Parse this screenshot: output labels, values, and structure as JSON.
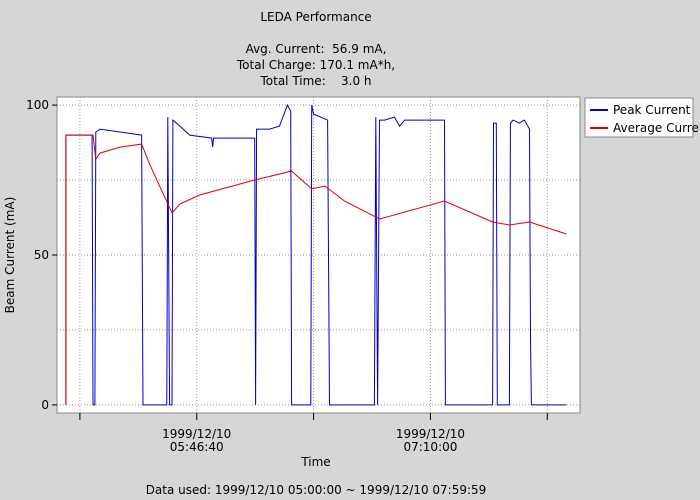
{
  "chart_data": {
    "type": "line",
    "title": "LEDA Performance",
    "subtitle": [
      "Avg. Current:  56.9 mA,",
      "Total Charge: 170.1 mA*h,",
      "Total Time:    3.0 h"
    ],
    "xlabel": "Time",
    "ylabel": "Beam Current (mA)",
    "footer": "Data used: 1999/12/10 05:00:00 ~ 1999/12/10 07:59:59",
    "xlim": [
      "1999/12/10 04:56:50",
      "1999/12/10 08:03:20"
    ],
    "xticks": [
      {
        "value": "1999/12/10 05:46:40",
        "label": [
          "1999/12/10",
          "05:46:40"
        ]
      },
      {
        "value": "1999/12/10 07:10:00",
        "label": [
          "1999/12/10",
          "07:10:00"
        ]
      }
    ],
    "x_minor_ticks": [
      "1999/12/10 05:05:00",
      "1999/12/10 06:28:20",
      "1999/12/10 07:51:40"
    ],
    "ylim": [
      -2.7,
      102.7
    ],
    "yticks": [
      0,
      50,
      100
    ],
    "y_minor_ticks": [
      25,
      75
    ],
    "grid": true,
    "legend": "right",
    "series": [
      {
        "name": "Peak Current",
        "color": "#0000cc",
        "x": [
          "1999/12/10 05:00:00",
          "1999/12/10 05:00:00",
          "1999/12/10 05:09:20",
          "1999/12/10 05:09:40",
          "1999/12/10 05:10:20",
          "1999/12/10 05:10:40",
          "1999/12/10 05:12:10",
          "1999/12/10 05:27:00",
          "1999/12/10 05:27:30",
          "1999/12/10 05:36:00",
          "1999/12/10 05:36:20",
          "1999/12/10 05:37:00",
          "1999/12/10 05:37:50",
          "1999/12/10 05:38:10",
          "1999/12/10 05:40:40",
          "1999/12/10 05:44:10",
          "1999/12/10 05:52:00",
          "1999/12/10 05:52:20",
          "1999/12/10 05:52:40",
          "1999/12/10 06:07:20",
          "1999/12/10 06:07:40",
          "1999/12/10 06:08:00",
          "1999/12/10 06:12:40",
          "1999/12/10 06:16:10",
          "1999/12/10 06:19:00",
          "1999/12/10 06:20:10",
          "1999/12/10 06:20:30",
          "1999/12/10 06:27:20",
          "1999/12/10 06:27:40",
          "1999/12/10 06:28:20",
          "1999/12/10 06:33:20",
          "1999/12/10 06:34:00",
          "1999/12/10 06:50:00",
          "1999/12/10 06:50:30",
          "1999/12/10 06:51:10",
          "1999/12/10 06:51:50",
          "1999/12/10 06:53:40",
          "1999/12/10 06:57:10",
          "1999/12/10 06:59:00",
          "1999/12/10 07:00:50",
          "1999/12/10 07:15:00",
          "1999/12/10 07:15:20",
          "1999/12/10 07:32:10",
          "1999/12/10 07:32:30",
          "1999/12/10 07:33:30",
          "1999/12/10 07:33:50",
          "1999/12/10 07:38:10",
          "1999/12/10 07:38:30",
          "1999/12/10 07:39:30",
          "1999/12/10 07:41:40",
          "1999/12/10 07:43:30",
          "1999/12/10 07:45:20",
          "1999/12/10 07:45:40",
          "1999/12/10 07:46:00",
          "1999/12/10 07:58:30"
        ],
        "values": [
          0,
          90,
          90,
          0,
          0,
          91,
          92,
          90,
          0,
          0,
          96,
          0,
          0,
          95,
          93,
          90,
          89,
          86,
          89,
          89,
          0,
          92,
          92,
          93,
          100,
          98,
          0,
          0,
          100,
          97,
          95,
          0,
          0,
          96,
          0,
          95,
          95,
          96,
          93,
          95,
          95,
          0,
          0,
          94,
          94,
          0,
          0,
          94,
          95,
          94,
          95,
          92,
          22,
          0,
          0
        ]
      },
      {
        "name": "Average Current",
        "color": "#dd0000",
        "x": [
          "1999/12/10 05:00:00",
          "1999/12/10 05:00:00",
          "1999/12/10 05:09:40",
          "1999/12/10 05:10:40",
          "1999/12/10 05:12:10",
          "1999/12/10 05:19:20",
          "1999/12/10 05:27:00",
          "1999/12/10 05:30:00",
          "1999/12/10 05:37:50",
          "1999/12/10 05:40:40",
          "1999/12/10 05:47:40",
          "1999/12/10 06:07:20",
          "1999/12/10 06:20:30",
          "1999/12/10 06:27:40",
          "1999/12/10 06:32:20",
          "1999/12/10 06:39:20",
          "1999/12/10 06:51:50",
          "1999/12/10 07:15:00",
          "1999/12/10 07:32:10",
          "1999/12/10 07:38:10",
          "1999/12/10 07:45:20",
          "1999/12/10 07:58:30"
        ],
        "values": [
          0,
          90,
          90,
          82,
          84,
          86,
          87,
          80,
          64,
          67,
          70,
          75,
          78,
          72,
          73,
          68,
          62,
          68,
          61,
          60,
          61,
          57
        ]
      }
    ]
  }
}
